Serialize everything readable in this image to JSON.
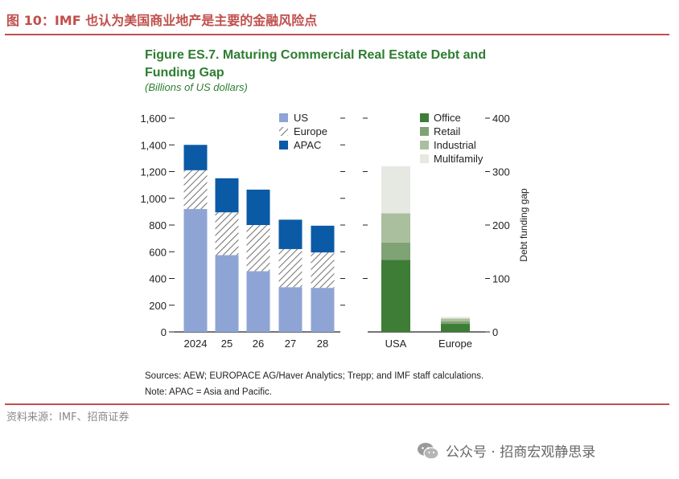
{
  "header": {
    "title": "图 10：IMF 也认为美国商业地产是主要的金融风险点"
  },
  "figure": {
    "title": "Figure ES.7. Maturing Commercial Real Estate Debt and Funding Gap",
    "subtitle": "(Billions of US dollars)",
    "notes": [
      "Sources: AEW; EUROPACE AG/Haver Analytics; Trepp; and IMF staff calculations.",
      "Note: APAC = Asia and Pacific."
    ]
  },
  "source": {
    "text": "资料来源：IMF、招商证券"
  },
  "watermark": {
    "text": "公众号 · 招商宏观静思录",
    "icon": "wechat-icon"
  },
  "colors": {
    "US": "#8ea4d4",
    "Europe": "hatched",
    "APAC": "#0b5aa6",
    "Office": "#3d7d36",
    "Retail": "#7fa374",
    "Industrial": "#a9bf9d",
    "Multifamily": "#e6e9e2",
    "title_green": "#2e7d32",
    "brand_red": "#c0504d"
  },
  "chart_data": [
    {
      "type": "bar",
      "stacked": true,
      "categories": [
        "2024",
        "25",
        "26",
        "27",
        "28"
      ],
      "series": [
        {
          "name": "US",
          "values": [
            920,
            575,
            455,
            335,
            330
          ]
        },
        {
          "name": "Europe",
          "values": [
            290,
            320,
            345,
            285,
            265
          ]
        },
        {
          "name": "APAC",
          "values": [
            190,
            255,
            265,
            220,
            200
          ]
        }
      ],
      "ylim": [
        0,
        1600
      ],
      "yticks": [
        "0",
        "200",
        "400",
        "600",
        "800",
        "1,000",
        "1,200",
        "1,400",
        "1,600"
      ],
      "legend": "top"
    },
    {
      "type": "bar",
      "stacked": true,
      "categories": [
        "USA",
        "Europe"
      ],
      "series": [
        {
          "name": "Office",
          "values": [
            135,
            15
          ]
        },
        {
          "name": "Retail",
          "values": [
            32,
            5
          ]
        },
        {
          "name": "Industrial",
          "values": [
            55,
            5
          ]
        },
        {
          "name": "Multifamily",
          "values": [
            88,
            3
          ]
        }
      ],
      "ylim": [
        0,
        400
      ],
      "yticks": [
        "0",
        "100",
        "200",
        "300",
        "400"
      ],
      "ylabel": "Debt funding gap",
      "legend": "top"
    }
  ]
}
